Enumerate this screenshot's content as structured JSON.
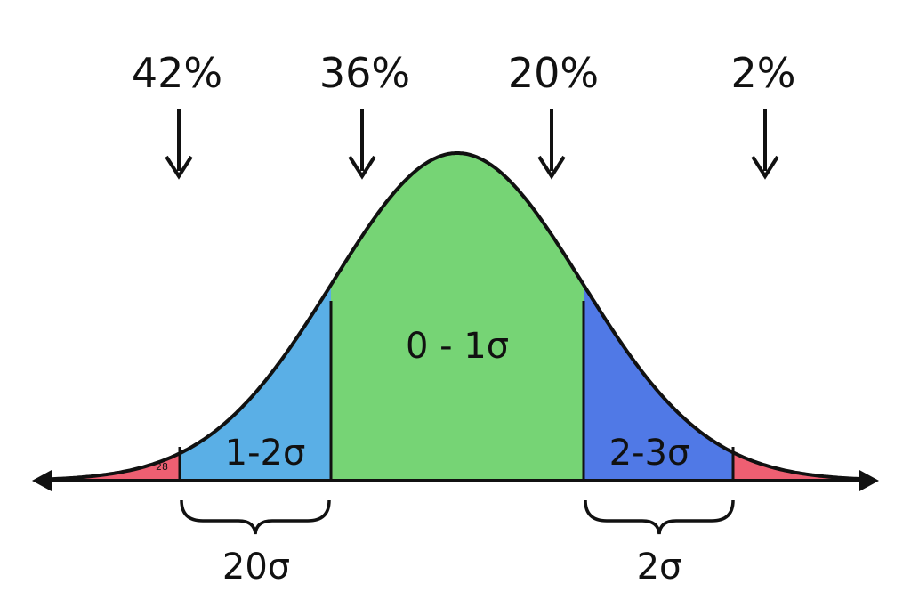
{
  "percentages": [
    "42%",
    "36%",
    "20%",
    "2%"
  ],
  "regions": {
    "center": "0 - 1σ",
    "left": "1-2σ",
    "right": "2-3σ",
    "left_tail_small": "28"
  },
  "braces": {
    "left": "20σ",
    "right": "2σ"
  },
  "colors": {
    "center": "#76d475",
    "left": "#5aafe6",
    "right": "#5079e6",
    "tail": "#ee5f72",
    "stroke": "#111111"
  }
}
